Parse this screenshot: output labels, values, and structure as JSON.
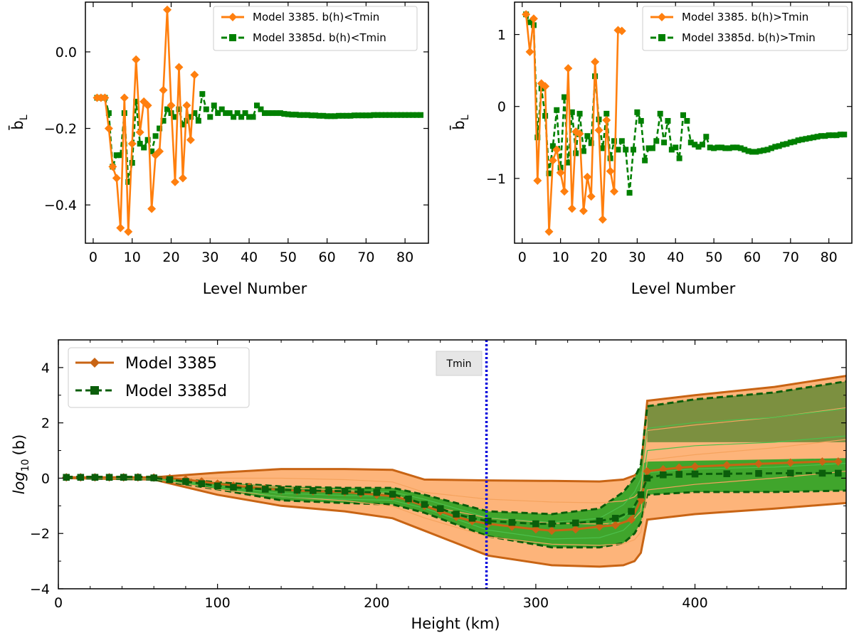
{
  "colors": {
    "orange": "#ff7f0e",
    "green": "#008000",
    "dark_orange": "#c86414",
    "dark_green": "#0b5e0b",
    "orange_fill": "#fdb47a",
    "green_fill": "#1fa21f",
    "olive_fill": "#6e8c3a",
    "tmin_line": "#0000dd"
  },
  "chart_data": [
    {
      "id": "top-left",
      "type": "line",
      "xlabel": "Level Number",
      "ylabel": "b̄",
      "ylabel_sub": "L",
      "xlim": [
        -2,
        86
      ],
      "ylim": [
        -0.5,
        0.13
      ],
      "xticks": [
        0,
        10,
        20,
        30,
        40,
        50,
        60,
        70,
        80
      ],
      "yticks": [
        -0.4,
        -0.2,
        0.0
      ],
      "ytick_labels": [
        "−0.4",
        "−0.2",
        "0.0"
      ],
      "legend_position": "top-right",
      "series": [
        {
          "name": "Model 3385. b(h)<Tmin",
          "style": "solid",
          "marker": "diamond",
          "color": "orange",
          "x": [
            1,
            2,
            3,
            4,
            5,
            6,
            7,
            8,
            9,
            10,
            11,
            12,
            13,
            14,
            15,
            16,
            17,
            18,
            19,
            20,
            21,
            22,
            23,
            24,
            25,
            26
          ],
          "y": [
            -0.12,
            -0.12,
            -0.12,
            -0.2,
            -0.3,
            -0.33,
            -0.46,
            -0.12,
            -0.47,
            -0.24,
            -0.02,
            -0.21,
            -0.13,
            -0.14,
            -0.41,
            -0.27,
            -0.26,
            -0.1,
            0.11,
            -0.14,
            -0.34,
            -0.04,
            -0.33,
            -0.14,
            -0.23,
            -0.06
          ]
        },
        {
          "name": "Model 3385d. b(h)<Tmin",
          "style": "dashed",
          "marker": "square",
          "color": "green",
          "x": [
            1,
            2,
            3,
            4,
            5,
            6,
            7,
            8,
            9,
            10,
            11,
            12,
            13,
            14,
            15,
            16,
            17,
            18,
            19,
            20,
            21,
            22,
            23,
            24,
            25,
            26,
            27,
            28,
            29,
            30,
            31,
            32,
            33,
            34,
            35,
            36,
            37,
            38,
            39,
            40,
            41,
            42,
            43,
            44,
            45,
            46,
            47,
            48,
            49,
            50,
            51,
            52,
            53,
            54,
            55,
            56,
            57,
            58,
            59,
            60,
            61,
            62,
            63,
            64,
            65,
            66,
            67,
            68,
            69,
            70,
            71,
            72,
            73,
            74,
            75,
            76,
            77,
            78,
            79,
            80,
            81,
            82,
            83,
            84
          ],
          "y": [
            -0.12,
            -0.12,
            -0.12,
            -0.16,
            -0.3,
            -0.27,
            -0.27,
            -0.16,
            -0.34,
            -0.29,
            -0.13,
            -0.24,
            -0.25,
            -0.23,
            -0.26,
            -0.22,
            -0.2,
            -0.18,
            -0.15,
            -0.16,
            -0.17,
            -0.15,
            -0.19,
            -0.18,
            -0.17,
            -0.16,
            -0.18,
            -0.11,
            -0.15,
            -0.17,
            -0.14,
            -0.16,
            -0.15,
            -0.16,
            -0.16,
            -0.17,
            -0.16,
            -0.17,
            -0.16,
            -0.17,
            -0.17,
            -0.14,
            -0.15,
            -0.16,
            -0.16,
            -0.16,
            -0.16,
            -0.16,
            -0.162,
            -0.163,
            -0.164,
            -0.164,
            -0.165,
            -0.165,
            -0.165,
            -0.166,
            -0.166,
            -0.167,
            -0.167,
            -0.168,
            -0.168,
            -0.168,
            -0.167,
            -0.167,
            -0.167,
            -0.167,
            -0.166,
            -0.166,
            -0.166,
            -0.166,
            -0.166,
            -0.165,
            -0.165,
            -0.165,
            -0.165,
            -0.165,
            -0.165,
            -0.165,
            -0.165,
            -0.165,
            -0.165,
            -0.165,
            -0.165,
            -0.165
          ]
        }
      ]
    },
    {
      "id": "top-right",
      "type": "line",
      "xlabel": "Level Number",
      "ylabel": "b̄",
      "ylabel_sub": "L",
      "xlim": [
        -2,
        86
      ],
      "ylim": [
        -1.9,
        1.45
      ],
      "xticks": [
        0,
        10,
        20,
        30,
        40,
        50,
        60,
        70,
        80
      ],
      "yticks": [
        -1,
        0,
        1
      ],
      "ytick_labels": [
        "−1",
        "0",
        "1"
      ],
      "legend_position": "top-right",
      "series": [
        {
          "name": "Model 3385. b(h)>Tmin",
          "style": "solid",
          "marker": "diamond",
          "color": "orange",
          "x": [
            1,
            2,
            3,
            4,
            5,
            6,
            7,
            8,
            9,
            10,
            11,
            12,
            13,
            14,
            15,
            16,
            17,
            18,
            19,
            20,
            21,
            22,
            23,
            24,
            25,
            26
          ],
          "y": [
            1.28,
            0.76,
            1.22,
            -1.03,
            0.32,
            0.28,
            -1.74,
            -0.75,
            -0.6,
            -0.92,
            -1.18,
            0.53,
            -1.42,
            -0.35,
            -0.38,
            -1.45,
            -0.98,
            -1.25,
            0.62,
            -0.33,
            -1.57,
            -0.19,
            -0.9,
            -1.18,
            1.06,
            1.05
          ]
        },
        {
          "name": "Model 3385d. b(h)>Tmin",
          "style": "dashed",
          "marker": "square",
          "color": "green",
          "x": [
            1,
            2,
            3,
            4,
            5,
            6,
            7,
            8,
            9,
            10,
            11,
            12,
            13,
            14,
            15,
            16,
            17,
            18,
            19,
            20,
            21,
            22,
            23,
            24,
            25,
            26,
            27,
            28,
            29,
            30,
            31,
            32,
            33,
            34,
            35,
            36,
            37,
            38,
            39,
            40,
            41,
            42,
            43,
            44,
            45,
            46,
            47,
            48,
            49,
            50,
            51,
            52,
            53,
            54,
            55,
            56,
            57,
            58,
            59,
            60,
            61,
            62,
            63,
            64,
            65,
            66,
            67,
            68,
            69,
            70,
            71,
            72,
            73,
            74,
            75,
            76,
            77,
            78,
            79,
            80,
            81,
            82,
            83,
            84
          ],
          "y": [
            1.28,
            1.17,
            1.13,
            -0.43,
            0.25,
            -0.13,
            -0.93,
            -0.55,
            -0.05,
            -0.85,
            0.13,
            -0.78,
            -0.08,
            -0.65,
            -0.1,
            -0.62,
            -0.41,
            -0.51,
            0.42,
            -0.18,
            -0.58,
            -0.1,
            -0.72,
            -0.48,
            -0.6,
            -0.48,
            -0.6,
            -1.2,
            -0.6,
            -0.08,
            -0.2,
            -0.75,
            -0.58,
            -0.58,
            -0.48,
            -0.1,
            -0.5,
            -0.2,
            -0.6,
            -0.57,
            -0.72,
            -0.12,
            -0.2,
            -0.5,
            -0.53,
            -0.56,
            -0.53,
            -0.42,
            -0.57,
            -0.58,
            -0.57,
            -0.57,
            -0.58,
            -0.58,
            -0.57,
            -0.57,
            -0.58,
            -0.6,
            -0.62,
            -0.63,
            -0.63,
            -0.62,
            -0.61,
            -0.6,
            -0.58,
            -0.56,
            -0.55,
            -0.53,
            -0.52,
            -0.5,
            -0.49,
            -0.47,
            -0.46,
            -0.45,
            -0.44,
            -0.43,
            -0.42,
            -0.41,
            -0.41,
            -0.4,
            -0.4,
            -0.4,
            -0.39,
            -0.39
          ]
        }
      ]
    },
    {
      "id": "bottom",
      "type": "area",
      "xlabel": "Height (km)",
      "ylabel": "log",
      "ylabel_sub": "10",
      "ylabel_suffix": "(b)",
      "xlim": [
        0,
        495
      ],
      "ylim": [
        -4,
        5
      ],
      "xticks": [
        0,
        100,
        200,
        300,
        400
      ],
      "yticks": [
        -4,
        -2,
        0,
        2,
        4
      ],
      "ytick_labels": [
        "−4",
        "−2",
        "0",
        "2",
        "4"
      ],
      "legend_position": "top-left",
      "annotation": {
        "text": "Tmin",
        "x": 269
      },
      "orange_envelope": {
        "x": [
          5,
          60,
          100,
          140,
          180,
          210,
          230,
          270,
          310,
          340,
          355,
          362,
          366,
          370,
          400,
          450,
          495
        ],
        "upper": [
          0.02,
          0.03,
          0.2,
          0.33,
          0.33,
          0.3,
          -0.05,
          -0.08,
          -0.1,
          -0.12,
          -0.05,
          0.1,
          0.3,
          2.8,
          3.0,
          3.3,
          3.7
        ],
        "lower": [
          0.0,
          -0.05,
          -0.6,
          -1.0,
          -1.2,
          -1.45,
          -1.9,
          -2.8,
          -3.15,
          -3.2,
          -3.15,
          -3.0,
          -2.7,
          -1.5,
          -1.3,
          -1.1,
          -0.9
        ]
      },
      "green_envelope": {
        "x": [
          5,
          60,
          100,
          140,
          180,
          210,
          230,
          270,
          310,
          340,
          355,
          362,
          366,
          370,
          400,
          450,
          495
        ],
        "upper": [
          0.05,
          0.05,
          -0.15,
          -0.3,
          -0.35,
          -0.35,
          -0.6,
          -1.2,
          -1.3,
          -1.1,
          -0.5,
          0.0,
          0.5,
          2.6,
          2.85,
          3.1,
          3.5
        ],
        "lower": [
          0.0,
          -0.05,
          -0.4,
          -0.8,
          -0.9,
          -0.95,
          -1.25,
          -2.1,
          -2.5,
          -2.5,
          -2.35,
          -2.0,
          -1.6,
          -0.6,
          -0.5,
          -0.5,
          -0.45
        ]
      },
      "series": [
        {
          "name": "Model 3385",
          "style": "solid",
          "marker": "diamond",
          "color": "dark_orange",
          "x": [
            5,
            14,
            23,
            32,
            41,
            50,
            60,
            70,
            80,
            90,
            100,
            110,
            120,
            130,
            140,
            150,
            160,
            170,
            180,
            190,
            200,
            210,
            220,
            230,
            240,
            250,
            260,
            270,
            285,
            300,
            310,
            325,
            340,
            350,
            360,
            366,
            370,
            380,
            390,
            400,
            420,
            440,
            460,
            480,
            490
          ],
          "y": [
            0.03,
            0.03,
            0.03,
            0.03,
            0.03,
            0.03,
            0.02,
            0.0,
            -0.05,
            -0.12,
            -0.2,
            -0.27,
            -0.32,
            -0.38,
            -0.42,
            -0.45,
            -0.47,
            -0.48,
            -0.5,
            -0.55,
            -0.6,
            -0.65,
            -0.8,
            -1.0,
            -1.2,
            -1.4,
            -1.55,
            -1.65,
            -1.75,
            -1.85,
            -1.9,
            -1.85,
            -1.75,
            -1.7,
            -1.5,
            -0.8,
            0.25,
            0.32,
            0.38,
            0.42,
            0.47,
            0.52,
            0.56,
            0.6,
            0.6
          ]
        },
        {
          "name": "Model 3385d",
          "style": "dashed",
          "marker": "square",
          "color": "dark_green",
          "x": [
            5,
            14,
            23,
            32,
            41,
            50,
            60,
            70,
            80,
            90,
            100,
            110,
            120,
            130,
            140,
            150,
            160,
            170,
            180,
            190,
            200,
            210,
            220,
            230,
            240,
            250,
            260,
            270,
            285,
            300,
            310,
            325,
            340,
            350,
            360,
            366,
            370,
            380,
            390,
            400,
            420,
            440,
            460,
            480,
            490
          ],
          "y": [
            0.03,
            0.03,
            0.03,
            0.03,
            0.03,
            0.03,
            0.01,
            -0.05,
            -0.12,
            -0.2,
            -0.28,
            -0.33,
            -0.37,
            -0.4,
            -0.42,
            -0.44,
            -0.45,
            -0.46,
            -0.47,
            -0.5,
            -0.52,
            -0.58,
            -0.75,
            -0.95,
            -1.1,
            -1.3,
            -1.45,
            -1.55,
            -1.6,
            -1.65,
            -1.65,
            -1.62,
            -1.55,
            -1.45,
            -1.2,
            -0.6,
            0.0,
            0.12,
            0.14,
            0.15,
            0.16,
            0.17,
            0.18,
            0.18,
            0.18
          ]
        }
      ]
    }
  ]
}
